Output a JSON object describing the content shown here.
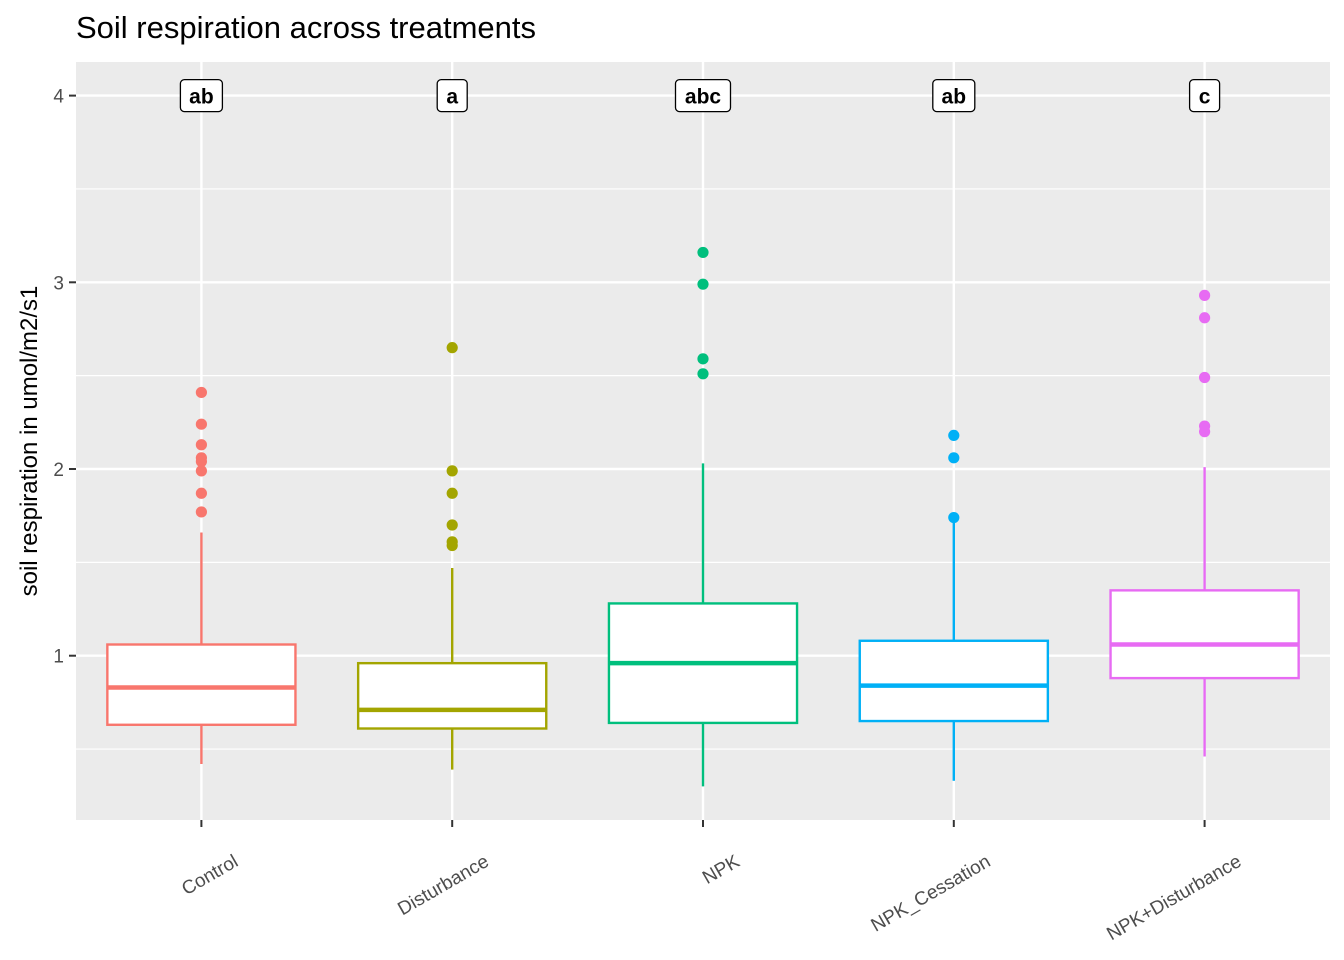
{
  "chart_data": {
    "type": "boxplot",
    "title": "Soil respiration across treatments",
    "xlabel": "",
    "ylabel": "soil respiration in umol/m2/s1",
    "ylim": [
      0.12,
      4.18
    ],
    "yticks": [
      1,
      2,
      3,
      4
    ],
    "grid": true,
    "legend": "none",
    "categories": [
      "Control",
      "Disturbance",
      "NPK",
      "NPK_Cessation",
      "NPK+Disturbance"
    ],
    "colors": [
      "#F8766D",
      "#A3A500",
      "#00BF7D",
      "#00B0F6",
      "#E76BF3"
    ],
    "significance_y": 4,
    "boxes": [
      {
        "category": "Control",
        "letter": "ab",
        "whisker_low": 0.42,
        "q1": 0.63,
        "median": 0.83,
        "q3": 1.06,
        "whisker_high": 1.66,
        "outliers": [
          1.77,
          1.87,
          1.99,
          2.04,
          2.06,
          2.13,
          2.24,
          2.41
        ]
      },
      {
        "category": "Disturbance",
        "letter": "a",
        "whisker_low": 0.39,
        "q1": 0.61,
        "median": 0.71,
        "q3": 0.96,
        "whisker_high": 1.47,
        "outliers": [
          1.59,
          1.61,
          1.7,
          1.87,
          1.99,
          2.65
        ]
      },
      {
        "category": "NPK",
        "letter": "abc",
        "whisker_low": 0.3,
        "q1": 0.64,
        "median": 0.96,
        "q3": 1.28,
        "whisker_high": 2.03,
        "outliers": [
          2.51,
          2.59,
          2.99,
          3.16
        ]
      },
      {
        "category": "NPK_Cessation",
        "letter": "ab",
        "whisker_low": 0.33,
        "q1": 0.65,
        "median": 0.84,
        "q3": 1.08,
        "whisker_high": 1.74,
        "outliers": [
          1.74,
          2.06,
          2.18
        ]
      },
      {
        "category": "NPK+Disturbance",
        "letter": "c",
        "whisker_low": 0.46,
        "q1": 0.88,
        "median": 1.06,
        "q3": 1.35,
        "whisker_high": 2.01,
        "outliers": [
          2.2,
          2.23,
          2.49,
          2.81,
          2.93
        ]
      }
    ]
  }
}
